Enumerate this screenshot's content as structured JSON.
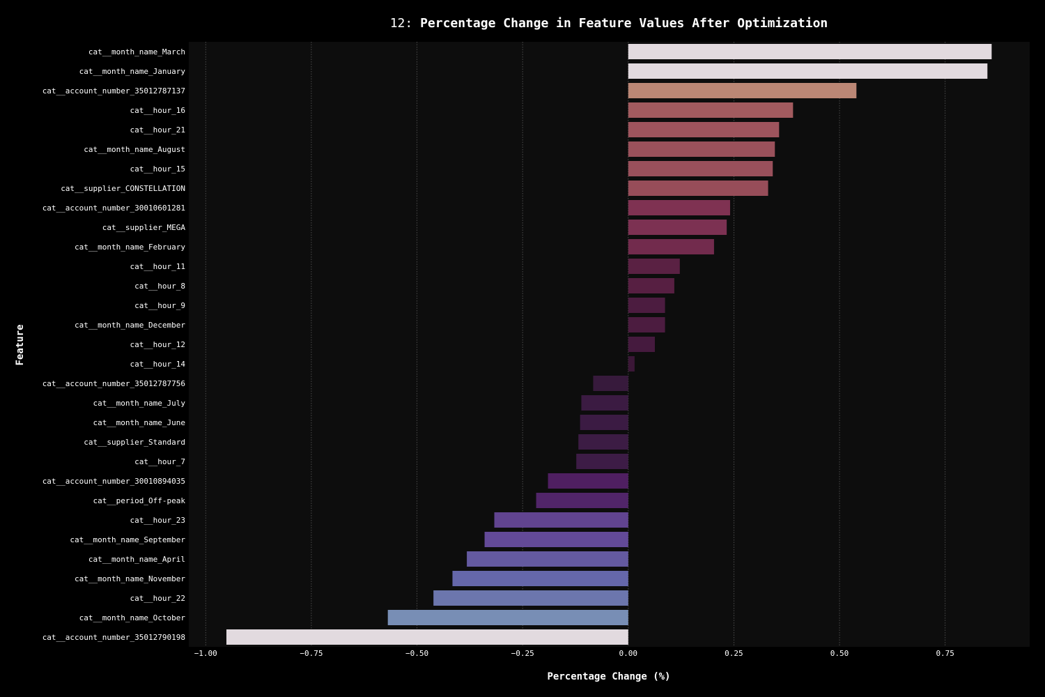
{
  "chart_data": {
    "type": "bar",
    "orientation": "horizontal",
    "title_number": "12",
    "title_separator": ": ",
    "title": "Percentage Change in Feature Values After Optimization",
    "xlabel": "Percentage Change (%)",
    "ylabel": "Feature",
    "xlim": [
      -1.04,
      0.95
    ],
    "xticks": [
      -1.0,
      -0.75,
      -0.5,
      -0.25,
      0.0,
      0.25,
      0.5,
      0.75
    ],
    "xtick_labels": [
      "−1.00",
      "−0.75",
      "−0.50",
      "−0.25",
      "0.00",
      "0.25",
      "0.50",
      "0.75"
    ],
    "grid": "x-dotted",
    "legend": "none",
    "categories": [
      "cat__month_name_March",
      "cat__month_name_January",
      "cat__account_number_35012787137",
      "cat__hour_16",
      "cat__hour_21",
      "cat__month_name_August",
      "cat__hour_15",
      "cat__supplier_CONSTELLATION",
      "cat__account_number_30010601281",
      "cat__supplier_MEGA",
      "cat__month_name_February",
      "cat__hour_11",
      "cat__hour_8",
      "cat__hour_9",
      "cat__month_name_December",
      "cat__hour_12",
      "cat__hour_14",
      "cat__account_number_35012787756",
      "cat__month_name_July",
      "cat__month_name_June",
      "cat__supplier_Standard",
      "cat__hour_7",
      "cat__account_number_30010894035",
      "cat__period_Off-peak",
      "cat__hour_23",
      "cat__month_name_September",
      "cat__month_name_April",
      "cat__month_name_November",
      "cat__hour_22",
      "cat__month_name_October",
      "cat__account_number_35012790198"
    ],
    "values": [
      0.86,
      0.85,
      0.54,
      0.39,
      0.357,
      0.347,
      0.342,
      0.331,
      0.241,
      0.233,
      0.203,
      0.122,
      0.109,
      0.087,
      0.087,
      0.063,
      0.015,
      -0.083,
      -0.111,
      -0.114,
      -0.118,
      -0.123,
      -0.19,
      -0.218,
      -0.317,
      -0.34,
      -0.382,
      -0.416,
      -0.461,
      -0.569,
      -0.951
    ],
    "colors": [
      "#e2dadf",
      "#e2dadf",
      "#bb8775",
      "#a25b5f",
      "#9e545d",
      "#9a515b",
      "#99505b",
      "#974d59",
      "#7f3252",
      "#7c3152",
      "#722b4d",
      "#5a2143",
      "#571f42",
      "#4c1c40",
      "#4c1c40",
      "#451a3e",
      "#3b1737",
      "#371a3c",
      "#3b1b42",
      "#3b1b43",
      "#3c1c44",
      "#3d1c46",
      "#4f1f61",
      "#512569",
      "#614490",
      "#634a98",
      "#645aa0",
      "#6567aa",
      "#6c76ad",
      "#788eb5",
      "#e2dadf"
    ]
  },
  "style": {
    "figure_bg": "#000000",
    "plot_bg": "#0d0d0d",
    "grid_color": "#5a5a5a",
    "text_color": "#ffffff"
  }
}
